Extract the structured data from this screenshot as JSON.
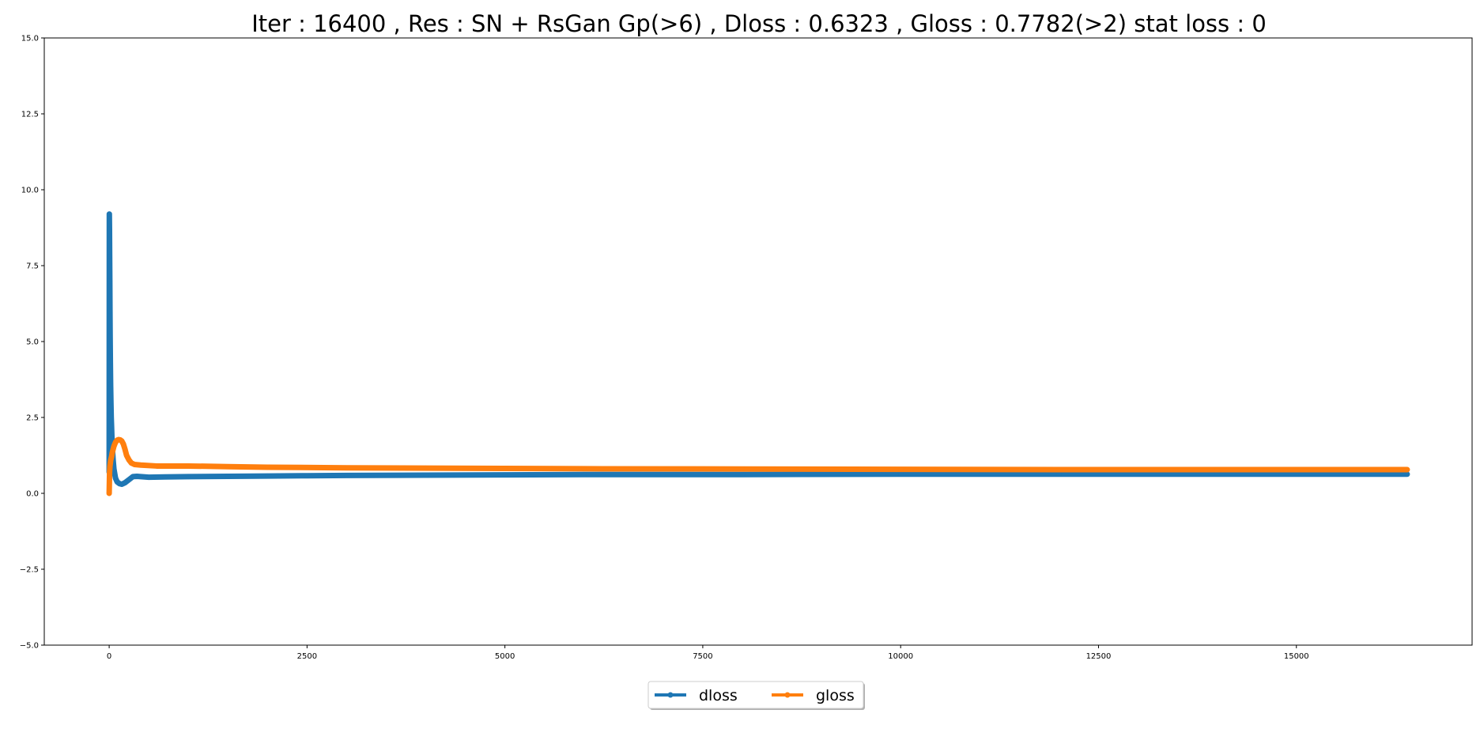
{
  "chart_data": {
    "type": "line",
    "title": "Iter : 16400 , Res : SN + RsGan Gp(>6) , Dloss : 0.6323 , Gloss : 0.7782(>2) stat loss : 0",
    "xlim": [
      -820,
      17220
    ],
    "ylim": [
      -5.0,
      15.0
    ],
    "x_ticks": [
      0,
      2500,
      5000,
      7500,
      10000,
      12500,
      15000
    ],
    "x_tick_labels": [
      "0",
      "2500",
      "5000",
      "7500",
      "10000",
      "12500",
      "15000"
    ],
    "y_ticks": [
      -5.0,
      -2.5,
      0.0,
      2.5,
      5.0,
      7.5,
      10.0,
      12.5,
      15.0
    ],
    "y_tick_labels": [
      "−5.0",
      "−2.5",
      "0.0",
      "2.5",
      "5.0",
      "7.5",
      "10.0",
      "12.5",
      "15.0"
    ],
    "grid": false,
    "legend_position": "bottom-center, outside plot",
    "series": [
      {
        "name": "dloss",
        "color": "#1f77b4",
        "x": [
          0,
          2,
          4,
          6,
          8,
          10,
          12,
          15,
          18,
          22,
          26,
          30,
          35,
          40,
          50,
          60,
          80,
          100,
          130,
          160,
          200,
          250,
          300,
          350,
          400,
          500,
          700,
          1000,
          1500,
          2000,
          2500,
          3000,
          4000,
          5000,
          6000,
          7000,
          8000,
          10000,
          12000,
          14000,
          16400
        ],
        "y": [
          0.7,
          9.2,
          8.7,
          7.8,
          7.0,
          6.0,
          5.2,
          4.3,
          3.6,
          3.0,
          2.5,
          2.2,
          1.8,
          1.5,
          1.1,
          0.8,
          0.5,
          0.38,
          0.32,
          0.3,
          0.35,
          0.45,
          0.55,
          0.56,
          0.55,
          0.53,
          0.54,
          0.55,
          0.56,
          0.57,
          0.58,
          0.59,
          0.6,
          0.61,
          0.62,
          0.62,
          0.62,
          0.63,
          0.63,
          0.63,
          0.63
        ]
      },
      {
        "name": "gloss",
        "color": "#ff7f0e",
        "x": [
          0,
          5,
          10,
          15,
          20,
          30,
          40,
          60,
          80,
          100,
          120,
          140,
          160,
          180,
          200,
          220,
          250,
          280,
          320,
          400,
          600,
          1000,
          1500,
          2000,
          3000,
          4000,
          5000,
          6000,
          8000,
          10000,
          12000,
          14000,
          16400
        ],
        "y": [
          0.0,
          0.7,
          0.9,
          1.0,
          1.1,
          1.2,
          1.35,
          1.55,
          1.68,
          1.75,
          1.77,
          1.76,
          1.72,
          1.62,
          1.45,
          1.25,
          1.1,
          1.0,
          0.95,
          0.93,
          0.9,
          0.9,
          0.88,
          0.86,
          0.84,
          0.83,
          0.82,
          0.81,
          0.8,
          0.79,
          0.78,
          0.78,
          0.78
        ]
      }
    ]
  }
}
